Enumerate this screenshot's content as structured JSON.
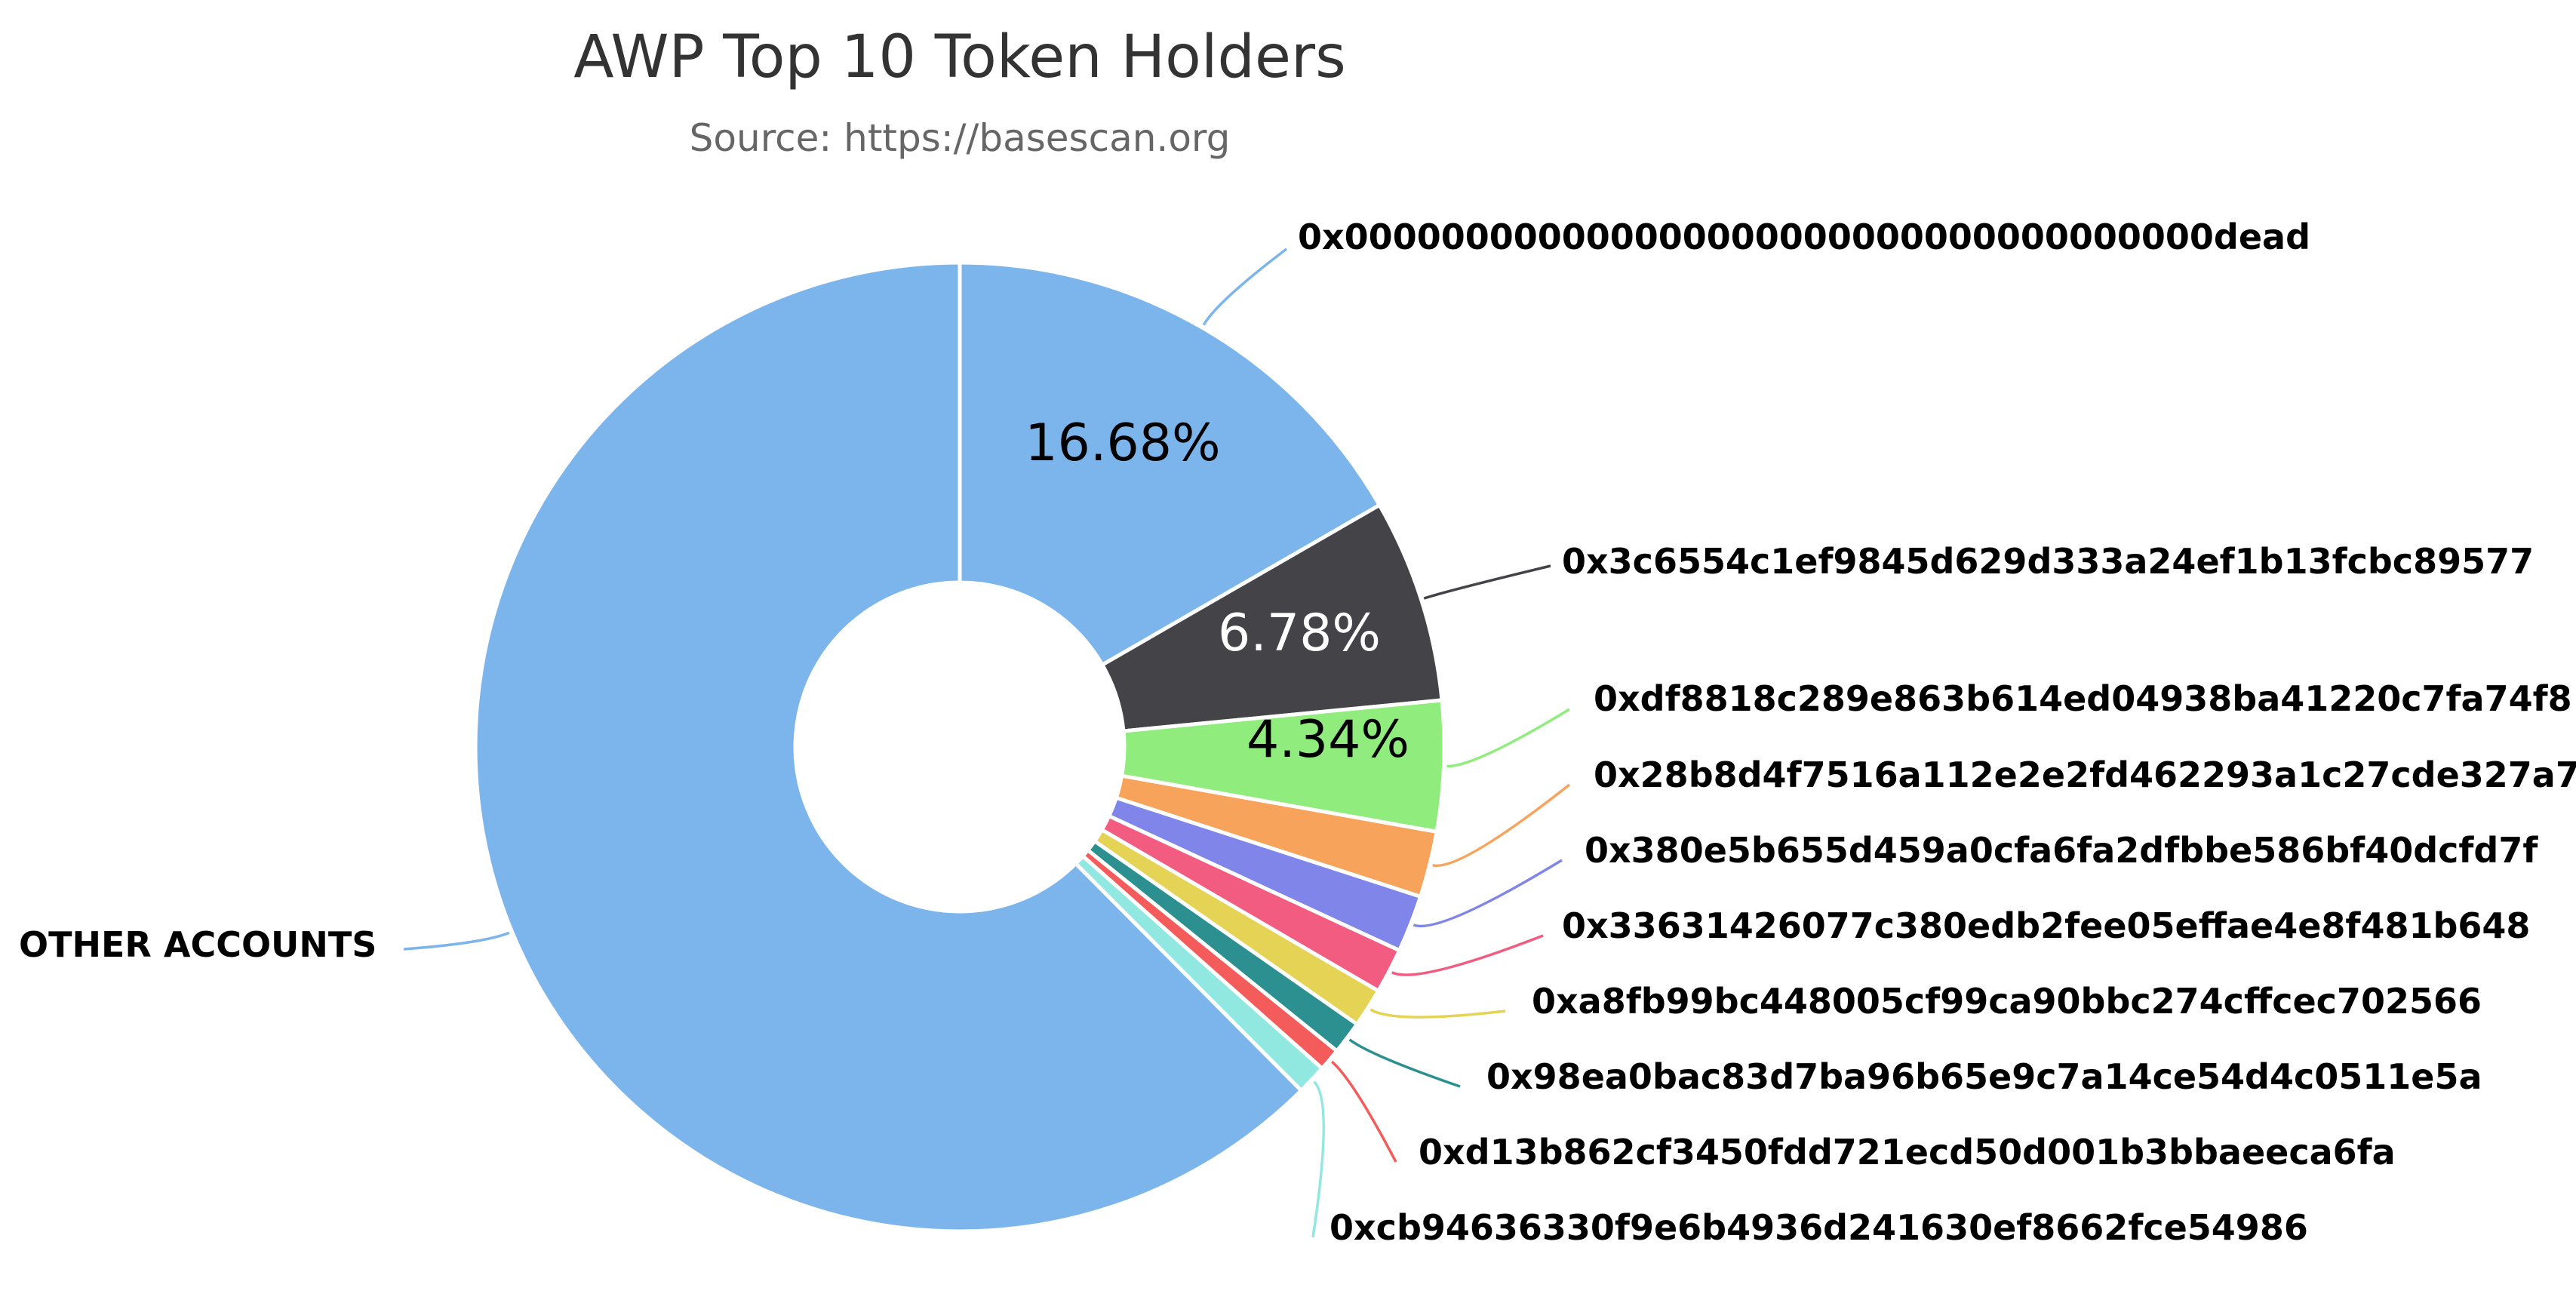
{
  "chart_data": {
    "type": "pie",
    "variant": "donut",
    "title": "AWP Top 10 Token Holders",
    "subtitle": "Source: https://basescan.org",
    "legend": "none",
    "slices": [
      {
        "label": "0x000000000000000000000000000000000000dead",
        "value": 16.68,
        "color": "#7cb5ec",
        "data_label": "16.68%"
      },
      {
        "label": "0x3c6554c1ef9845d629d333a24ef1b13fcbc89577",
        "value": 6.78,
        "color": "#434348",
        "data_label": "6.78%"
      },
      {
        "label": "0xdf8818c289e863b614ed04938ba41220c7fa74f8",
        "value": 4.34,
        "color": "#90ed7d",
        "data_label": "4.34%"
      },
      {
        "label": "0x28b8d4f7516a112e2e2fd462293a1c27cde327a7",
        "value": 2.2,
        "color": "#f7a35c",
        "data_label": ""
      },
      {
        "label": "0x380e5b655d459a0cfa6fa2dfbbe586bf40dcfd7f",
        "value": 1.9,
        "color": "#8085e9",
        "data_label": ""
      },
      {
        "label": "0x33631426077c380edb2fee05effae4e8f481b648",
        "value": 1.5,
        "color": "#f15c80",
        "data_label": ""
      },
      {
        "label": "0xa8fb99bc448005cf99ca90bbc274cffcec702566",
        "value": 1.3,
        "color": "#e4d354",
        "data_label": ""
      },
      {
        "label": "0x98ea0bac83d7ba96b65e9c7a14ce54d4c0511e5a",
        "value": 1.1,
        "color": "#2b908f",
        "data_label": ""
      },
      {
        "label": "0xd13b862cf3450fdd721ecd50d001b3bbaeeca6fa",
        "value": 0.75,
        "color": "#f45b5b",
        "data_label": ""
      },
      {
        "label": "0xcb94636330f9e6b4936d241630ef8662fce54986",
        "value": 1.0,
        "color": "#91e8e1",
        "data_label": ""
      },
      {
        "label": "OTHER ACCOUNTS",
        "value": 62.45,
        "color": "#7cb5ec",
        "data_label": ""
      }
    ]
  }
}
